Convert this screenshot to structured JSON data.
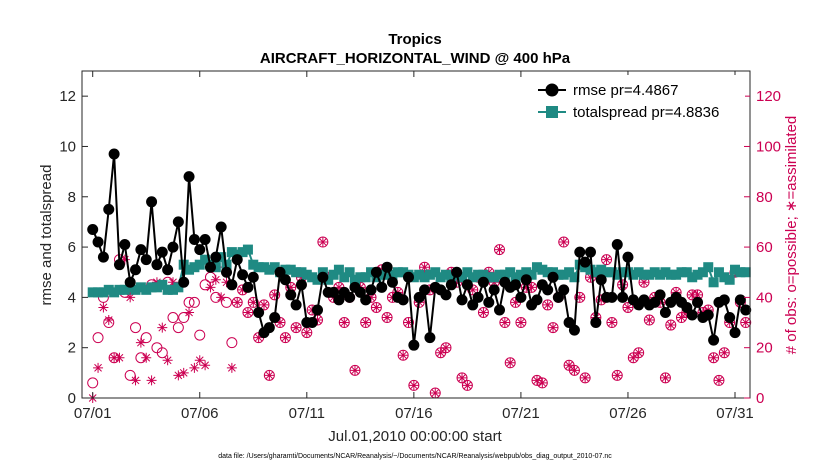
{
  "chart_data": {
    "type": "line",
    "title": "Tropics",
    "subtitle": "AIRCRAFT_HORIZONTAL_WIND @ 400 hPa",
    "xlabel": "Jul.01,2010 00:00:00 start",
    "ylabel": "rmse and totalspread",
    "y2label": "# of obs: o=possible; ∗=assimilated",
    "footnote": "data file: /Users/gharamti/Documents/NCAR/Reanalysis/~/Documents/NCAR/Reanalysis/webpub/obs_diag_output_2010-07.nc",
    "xlim": [
      0.5,
      31.7
    ],
    "ylim": [
      0,
      13
    ],
    "y2lim": [
      0,
      130
    ],
    "x_ticks": [
      1,
      6,
      11,
      16,
      21,
      26,
      31
    ],
    "x_tick_labels": [
      "07/01",
      "07/06",
      "07/11",
      "07/16",
      "07/21",
      "07/26",
      "07/31"
    ],
    "y_ticks": [
      0,
      2,
      4,
      6,
      8,
      10,
      12
    ],
    "y_tick_labels": [
      "0",
      "2",
      "4",
      "6",
      "8",
      "10",
      "12"
    ],
    "y2_ticks": [
      0,
      20,
      40,
      60,
      80,
      100,
      120
    ],
    "y2_tick_labels": [
      "0",
      "20",
      "40",
      "60",
      "80",
      "100",
      "120"
    ],
    "legend": {
      "position": "top-right",
      "entries": [
        "rmse pr=4.4867",
        "totalspread pr=4.8836"
      ]
    },
    "colors": {
      "rmse": "#000000",
      "totalspread": "#1f8a83",
      "obs": "#cc0052"
    },
    "series": [
      {
        "name": "rmse",
        "x": [
          1.0,
          1.25,
          1.5,
          1.75,
          2.0,
          2.25,
          2.5,
          2.75,
          3.0,
          3.25,
          3.5,
          3.75,
          4.0,
          4.25,
          4.5,
          4.75,
          5.0,
          5.25,
          5.5,
          5.75,
          6.0,
          6.25,
          6.5,
          6.75,
          7.0,
          7.25,
          7.5,
          7.75,
          8.0,
          8.25,
          8.5,
          8.75,
          9.0,
          9.25,
          9.5,
          9.75,
          10.0,
          10.25,
          10.5,
          10.75,
          11.0,
          11.25,
          11.5,
          11.75,
          12.0,
          12.25,
          12.5,
          12.75,
          13.0,
          13.25,
          13.5,
          13.75,
          14.0,
          14.25,
          14.5,
          14.75,
          15.0,
          15.25,
          15.5,
          15.75,
          16.0,
          16.25,
          16.5,
          16.75,
          17.0,
          17.25,
          17.5,
          17.75,
          18.0,
          18.25,
          18.5,
          18.75,
          19.0,
          19.25,
          19.5,
          19.75,
          20.0,
          20.25,
          20.5,
          20.75,
          21.0,
          21.25,
          21.5,
          21.75,
          22.0,
          22.25,
          22.5,
          22.75,
          23.0,
          23.25,
          23.5,
          23.75,
          24.0,
          24.25,
          24.5,
          24.75,
          25.0,
          25.25,
          25.5,
          25.75,
          26.0,
          26.25,
          26.5,
          26.75,
          27.0,
          27.25,
          27.5,
          27.75,
          28.0,
          28.25,
          28.5,
          28.75,
          29.0,
          29.25,
          29.5,
          29.75,
          30.0,
          30.25,
          30.5,
          30.75,
          31.0,
          31.25,
          31.5
        ],
        "values": [
          6.7,
          6.2,
          5.6,
          7.5,
          9.7,
          5.3,
          6.1,
          4.6,
          5.1,
          5.9,
          5.5,
          7.8,
          5.3,
          5.8,
          5.1,
          6.0,
          7.0,
          4.6,
          8.8,
          6.3,
          5.9,
          6.3,
          5.2,
          5.6,
          6.8,
          5.0,
          4.5,
          5.5,
          4.9,
          4.4,
          4.8,
          3.4,
          2.6,
          2.8,
          3.2,
          5.0,
          4.7,
          4.1,
          3.7,
          4.5,
          3.0,
          3.0,
          3.5,
          4.8,
          4.2,
          4.2,
          3.9,
          4.2,
          4.0,
          4.4,
          4.2,
          3.9,
          4.3,
          5.0,
          4.4,
          5.2,
          4.6,
          4.0,
          3.9,
          4.8,
          2.1,
          4.0,
          4.3,
          2.4,
          4.4,
          4.3,
          4.1,
          4.5,
          5.0,
          3.9,
          4.5,
          3.7,
          4.0,
          4.6,
          3.8,
          4.3,
          3.5,
          4.6,
          4.4,
          4.5,
          4.0,
          4.7,
          3.7,
          3.9,
          4.5,
          4.3,
          4.8,
          4.0,
          4.3,
          3.0,
          2.7,
          5.8,
          5.4,
          5.8,
          3.0,
          4.7,
          4.0,
          4.0,
          6.1,
          4.0,
          5.6,
          3.9,
          3.7,
          3.9,
          3.7,
          3.8,
          4.1,
          3.4,
          3.8,
          4.0,
          3.8,
          3.6,
          3.3,
          3.8,
          3.2,
          3.3,
          2.3,
          3.8,
          3.9,
          3.2,
          2.6,
          3.9,
          3.5
        ]
      },
      {
        "name": "totalspread",
        "x": [
          1.0,
          1.25,
          1.5,
          1.75,
          2.0,
          2.25,
          2.5,
          2.75,
          3.0,
          3.25,
          3.5,
          3.75,
          4.0,
          4.25,
          4.5,
          4.75,
          5.0,
          5.25,
          5.5,
          5.75,
          6.0,
          6.25,
          6.5,
          6.75,
          7.0,
          7.25,
          7.5,
          7.75,
          8.0,
          8.25,
          8.5,
          8.75,
          9.0,
          9.25,
          9.5,
          9.75,
          10.0,
          10.25,
          10.5,
          10.75,
          11.0,
          11.25,
          11.5,
          11.75,
          12.0,
          12.25,
          12.5,
          12.75,
          13.0,
          13.25,
          13.5,
          13.75,
          14.0,
          14.25,
          14.5,
          14.75,
          15.0,
          15.25,
          15.5,
          15.75,
          16.0,
          16.25,
          16.5,
          16.75,
          17.0,
          17.25,
          17.5,
          17.75,
          18.0,
          18.25,
          18.5,
          18.75,
          19.0,
          19.25,
          19.5,
          19.75,
          20.0,
          20.25,
          20.5,
          20.75,
          21.0,
          21.25,
          21.5,
          21.75,
          22.0,
          22.25,
          22.5,
          22.75,
          23.0,
          23.25,
          23.5,
          23.75,
          24.0,
          24.25,
          24.5,
          24.75,
          25.0,
          25.25,
          25.5,
          25.75,
          26.0,
          26.25,
          26.5,
          26.75,
          27.0,
          27.25,
          27.5,
          27.75,
          28.0,
          28.25,
          28.5,
          28.75,
          29.0,
          29.25,
          29.5,
          29.75,
          30.0,
          30.25,
          30.5,
          30.75,
          31.0,
          31.25,
          31.5
        ],
        "values": [
          4.2,
          4.2,
          4.2,
          4.3,
          4.2,
          4.3,
          4.3,
          4.4,
          4.3,
          4.4,
          4.3,
          4.4,
          4.4,
          4.5,
          4.3,
          4.3,
          4.4,
          5.3,
          5.1,
          5.2,
          5.3,
          5.5,
          5.3,
          5.2,
          5.6,
          5.3,
          5.8,
          5.7,
          5.8,
          5.9,
          5.3,
          5.2,
          5.2,
          5.1,
          5.2,
          5.0,
          5.1,
          5.1,
          5.0,
          5.0,
          4.9,
          4.8,
          4.7,
          5.0,
          4.7,
          4.9,
          5.1,
          4.8,
          5.0,
          4.7,
          4.8,
          4.8,
          5.0,
          4.8,
          4.9,
          4.9,
          4.9,
          5.0,
          5.0,
          4.9,
          4.8,
          4.9,
          4.8,
          4.9,
          5.0,
          4.8,
          4.9,
          4.8,
          4.9,
          4.8,
          5.0,
          4.8,
          4.9,
          4.9,
          4.8,
          4.8,
          4.9,
          4.9,
          5.0,
          4.8,
          4.9,
          5.0,
          4.9,
          5.2,
          5.1,
          5.0,
          5.0,
          4.9,
          4.9,
          5.0,
          4.8,
          5.3,
          5.2,
          5.1,
          5.0,
          5.1,
          5.0,
          5.0,
          4.9,
          5.0,
          5.0,
          4.9,
          5.0,
          4.9,
          4.9,
          5.0,
          4.9,
          5.0,
          4.9,
          4.9,
          5.0,
          5.0,
          4.8,
          4.9,
          5.0,
          5.2,
          4.6,
          5.0,
          4.8,
          4.7,
          5.1,
          5.0,
          5.0
        ]
      },
      {
        "name": "obs possible (o)",
        "axis": "right",
        "x": [
          1.0,
          1.25,
          1.5,
          1.75,
          2.0,
          2.25,
          2.5,
          2.75,
          3.0,
          3.25,
          3.5,
          3.75,
          4.0,
          4.25,
          4.5,
          4.75,
          5.0,
          5.25,
          5.5,
          5.75,
          6.0,
          6.25,
          6.5,
          6.75,
          7.0,
          7.25,
          7.5,
          7.75,
          8.0,
          8.25,
          8.5,
          8.75,
          9.0,
          9.25,
          9.5,
          9.75,
          10.0,
          10.25,
          10.5,
          10.75,
          11.0,
          11.25,
          11.5,
          11.75,
          12.0,
          12.25,
          12.5,
          12.75,
          13.0,
          13.25,
          13.5,
          13.75,
          14.0,
          14.25,
          14.5,
          14.75,
          15.0,
          15.25,
          15.5,
          15.75,
          16.0,
          16.25,
          16.5,
          16.75,
          17.0,
          17.25,
          17.5,
          17.75,
          18.0,
          18.25,
          18.5,
          18.75,
          19.0,
          19.25,
          19.5,
          19.75,
          20.0,
          20.25,
          20.5,
          20.75,
          21.0,
          21.25,
          21.5,
          21.75,
          22.0,
          22.25,
          22.5,
          22.75,
          23.0,
          23.25,
          23.5,
          23.75,
          24.0,
          24.25,
          24.5,
          24.75,
          25.0,
          25.25,
          25.5,
          25.75,
          26.0,
          26.25,
          26.5,
          26.75,
          27.0,
          27.25,
          27.5,
          27.75,
          28.0,
          28.25,
          28.5,
          28.75,
          29.0,
          29.25,
          29.5,
          29.75,
          30.0,
          30.25,
          30.5,
          30.75,
          31.0,
          31.25,
          31.5
        ],
        "values": [
          6,
          24,
          40,
          30,
          16,
          55,
          42,
          9,
          28,
          16,
          24,
          45,
          20,
          18,
          46,
          32,
          28,
          32,
          38,
          38,
          25,
          45,
          48,
          40,
          54,
          38,
          22,
          38,
          43,
          34,
          38,
          24,
          37,
          9,
          41,
          30,
          24,
          44,
          28,
          48,
          26,
          35,
          31,
          62,
          48,
          40,
          44,
          30,
          40,
          11,
          44,
          30,
          40,
          36,
          51,
          32,
          40,
          42,
          17,
          30,
          5,
          38,
          52,
          43,
          2,
          18,
          20,
          50,
          46,
          8,
          5,
          43,
          48,
          34,
          50,
          46,
          59,
          30,
          14,
          38,
          30,
          44,
          44,
          7,
          6,
          37,
          28,
          40,
          62,
          13,
          11,
          40,
          8,
          48,
          32,
          39,
          55,
          30,
          9,
          45,
          36,
          16,
          18,
          46,
          31,
          40,
          38,
          8,
          29,
          42,
          32,
          34,
          41,
          41,
          34,
          35,
          16,
          7,
          18,
          30,
          50,
          38,
          30
        ]
      },
      {
        "name": "obs assimilated (*)",
        "axis": "right",
        "x": [
          1.0,
          1.25,
          1.5,
          1.75,
          2.0,
          2.25,
          2.5,
          2.75,
          3.0,
          3.25,
          3.5,
          3.75,
          4.0,
          4.25,
          4.5,
          4.75,
          5.0,
          5.25,
          5.5,
          5.75,
          6.0,
          6.25,
          6.5,
          6.75,
          7.0,
          7.25,
          7.5,
          7.75,
          8.0,
          8.25,
          8.5,
          8.75,
          9.0,
          9.25,
          9.5,
          9.75,
          10.0,
          10.25,
          10.5,
          10.75,
          11.0,
          11.25,
          11.5,
          11.75,
          12.0,
          12.25,
          12.5,
          12.75,
          13.0,
          13.25,
          13.5,
          13.75,
          14.0,
          14.25,
          14.5,
          14.75,
          15.0,
          15.25,
          15.5,
          15.75,
          16.0,
          16.25,
          16.5,
          16.75,
          17.0,
          17.25,
          17.5,
          17.75,
          18.0,
          18.25,
          18.5,
          18.75,
          19.0,
          19.25,
          19.5,
          19.75,
          20.0,
          20.25,
          20.5,
          20.75,
          21.0,
          21.25,
          21.5,
          21.75,
          22.0,
          22.25,
          22.5,
          22.75,
          23.0,
          23.25,
          23.5,
          23.75,
          24.0,
          24.25,
          24.5,
          24.75,
          25.0,
          25.25,
          25.5,
          25.75,
          26.0,
          26.25,
          26.5,
          26.75,
          27.0,
          27.25,
          27.5,
          27.75,
          28.0,
          28.25,
          28.5,
          28.75,
          29.0,
          29.25,
          29.5,
          29.75,
          30.0,
          30.25,
          30.5,
          30.75,
          31.0,
          31.25,
          31.5
        ],
        "values": [
          0,
          12,
          36,
          31,
          16,
          16,
          55,
          40,
          7,
          22,
          16,
          7,
          46,
          28,
          15,
          46,
          9,
          10,
          34,
          12,
          15,
          13,
          44,
          47,
          40,
          46,
          12,
          38,
          43,
          34,
          38,
          24,
          37,
          9,
          41,
          30,
          24,
          44,
          28,
          48,
          26,
          35,
          31,
          62,
          48,
          40,
          44,
          30,
          40,
          11,
          44,
          30,
          40,
          36,
          51,
          32,
          40,
          42,
          17,
          30,
          5,
          38,
          52,
          43,
          2,
          18,
          20,
          50,
          46,
          8,
          5,
          43,
          48,
          34,
          50,
          46,
          59,
          30,
          14,
          38,
          30,
          44,
          44,
          7,
          6,
          37,
          28,
          40,
          62,
          13,
          11,
          40,
          8,
          48,
          32,
          39,
          55,
          30,
          9,
          45,
          36,
          16,
          18,
          46,
          31,
          40,
          38,
          8,
          29,
          42,
          32,
          34,
          41,
          41,
          34,
          35,
          16,
          7,
          18,
          30,
          50,
          38,
          30
        ]
      }
    ]
  }
}
